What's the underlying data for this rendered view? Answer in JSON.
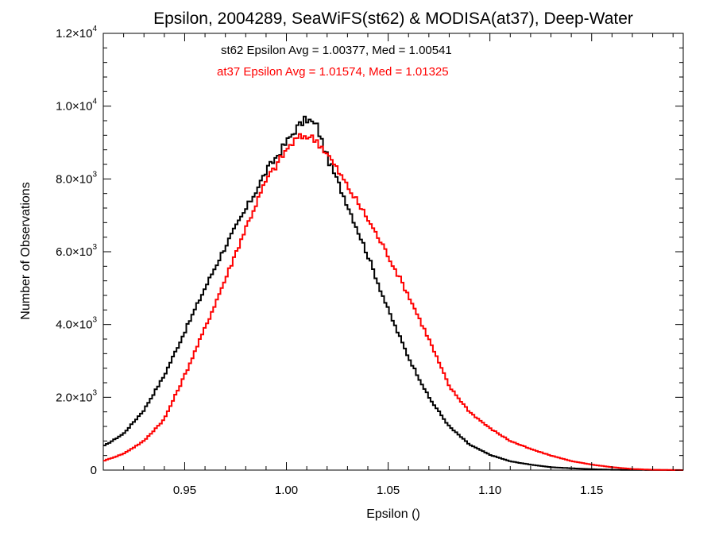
{
  "chart_data": {
    "type": "line",
    "step": true,
    "title": "Epsilon, 2004289, SeaWiFS(st62) & MODISA(at37), Deep-Water",
    "xlabel": "Epsilon ()",
    "ylabel": "Number of Observations",
    "xlim": [
      0.91,
      1.195
    ],
    "ylim": [
      0,
      12000
    ],
    "x_ticks": [
      0.95,
      1.0,
      1.05,
      1.1,
      1.15
    ],
    "x_tick_labels": [
      "0.95",
      "1.00",
      "1.05",
      "1.10",
      "1.15"
    ],
    "y_ticks": [
      0,
      2000,
      4000,
      6000,
      8000,
      10000,
      12000
    ],
    "y_tick_labels": [
      {
        "mantissa": "0",
        "exponent": ""
      },
      {
        "mantissa": "2.0×10",
        "exponent": "3"
      },
      {
        "mantissa": "4.0×10",
        "exponent": "3"
      },
      {
        "mantissa": "6.0×10",
        "exponent": "3"
      },
      {
        "mantissa": "8.0×10",
        "exponent": "3"
      },
      {
        "mantissa": "1.0×10",
        "exponent": "4"
      },
      {
        "mantissa": "1.2×10",
        "exponent": "4"
      }
    ],
    "x_minor_step": 0.01,
    "y_minor_step": 400,
    "grid": false,
    "annotations": [
      {
        "text": "st62 Epsilon Avg = 1.00377, Med = 1.00541",
        "color": "#000000"
      },
      {
        "text": "at37 Epsilon Avg = 1.01574, Med = 1.01325",
        "color": "#ff0000"
      }
    ],
    "x": [
      0.91,
      0.92,
      0.93,
      0.94,
      0.95,
      0.96,
      0.97,
      0.98,
      0.99,
      1.0,
      1.005,
      1.01,
      1.015,
      1.02,
      1.03,
      1.04,
      1.05,
      1.06,
      1.07,
      1.08,
      1.09,
      1.1,
      1.11,
      1.12,
      1.13,
      1.14,
      1.15,
      1.16,
      1.17,
      1.18,
      1.195
    ],
    "series": [
      {
        "color": "#000000",
        "values": [
          650,
          1000,
          1650,
          2600,
          3800,
          5000,
          6150,
          7150,
          8200,
          9000,
          9400,
          9650,
          9450,
          8600,
          7300,
          5900,
          4400,
          3100,
          2000,
          1200,
          700,
          420,
          240,
          150,
          80,
          50,
          25,
          10,
          5,
          2,
          0
        ]
      },
      {
        "color": "#ff0000",
        "values": [
          250,
          450,
          800,
          1400,
          2600,
          3900,
          5250,
          6650,
          7950,
          8800,
          9100,
          9200,
          9050,
          8700,
          7800,
          6900,
          5900,
          4800,
          3600,
          2300,
          1600,
          1150,
          800,
          580,
          400,
          250,
          150,
          80,
          30,
          10,
          0
        ]
      }
    ]
  }
}
